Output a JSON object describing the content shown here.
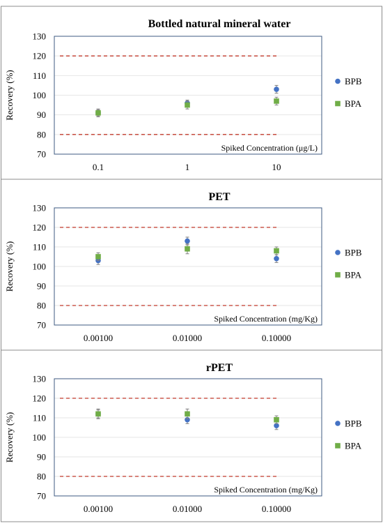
{
  "colors": {
    "BPB": "#4472c4",
    "BPA": "#70ad47",
    "limit": "#c0392b"
  },
  "chart_data": [
    {
      "type": "scatter",
      "title": "Bottled natural mineral water",
      "xlabel": "Spiked Concentration (μg/L)",
      "ylabel": "Recovery (%)",
      "categories": [
        "0.1",
        "1",
        "10"
      ],
      "ylim": [
        70,
        130
      ],
      "yticks": [
        70,
        80,
        90,
        100,
        110,
        120,
        130
      ],
      "grid": true,
      "legend": "right",
      "limits": [
        80,
        120
      ],
      "series": [
        {
          "name": "BPB",
          "marker": "circle",
          "values": [
            91,
            96,
            103
          ],
          "errors": [
            1.5,
            1.5,
            2
          ]
        },
        {
          "name": "BPA",
          "marker": "square",
          "values": [
            91,
            95,
            97
          ],
          "errors": [
            2,
            2,
            2
          ]
        }
      ]
    },
    {
      "type": "scatter",
      "title": "PET",
      "xlabel": "Spiked Concentration (mg/Kg)",
      "ylabel": "Recovery (%)",
      "categories": [
        "0.00100",
        "0.01000",
        "0.10000"
      ],
      "ylim": [
        70,
        130
      ],
      "yticks": [
        70,
        80,
        90,
        100,
        110,
        120,
        130
      ],
      "grid": true,
      "legend": "right",
      "limits": [
        80,
        120
      ],
      "series": [
        {
          "name": "BPB",
          "marker": "circle",
          "values": [
            103,
            113,
            104
          ],
          "errors": [
            2,
            2,
            2
          ]
        },
        {
          "name": "BPA",
          "marker": "square",
          "values": [
            105,
            109,
            108
          ],
          "errors": [
            2,
            2.5,
            2
          ]
        }
      ]
    },
    {
      "type": "scatter",
      "title": "rPET",
      "xlabel": "Spiked Concentration (mg/Kg)",
      "ylabel": "Recovery (%)",
      "categories": [
        "0.00100",
        "0.01000",
        "0.10000"
      ],
      "ylim": [
        70,
        130
      ],
      "yticks": [
        70,
        80,
        90,
        100,
        110,
        120,
        130
      ],
      "grid": true,
      "legend": "right",
      "limits": [
        80,
        120
      ],
      "series": [
        {
          "name": "BPB",
          "marker": "circle",
          "values": [
            112,
            109,
            106
          ],
          "errors": [
            2,
            2,
            2
          ]
        },
        {
          "name": "BPA",
          "marker": "square",
          "values": [
            112,
            112,
            109
          ],
          "errors": [
            2.5,
            2.5,
            2
          ]
        }
      ]
    }
  ]
}
